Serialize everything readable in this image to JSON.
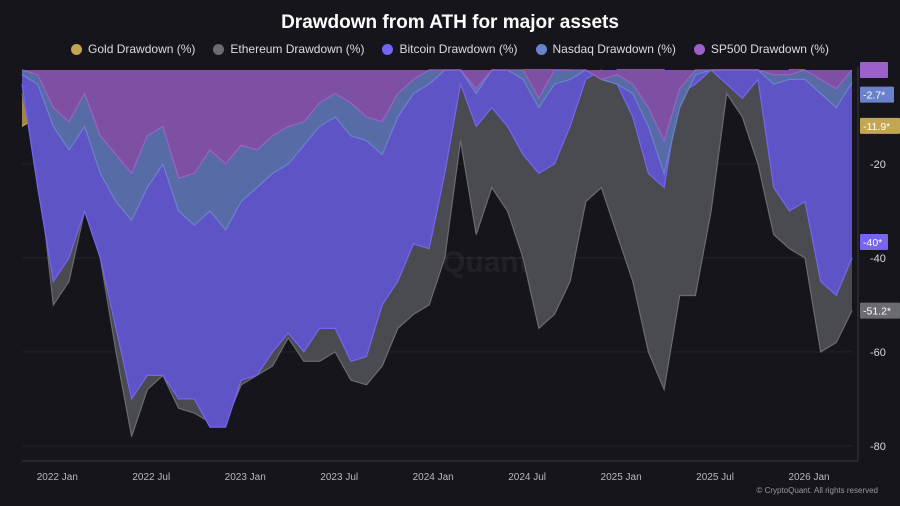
{
  "chart_data": {
    "type": "area",
    "title": "Drawdown from ATH for major assets",
    "ylim": [
      -83,
      0
    ],
    "y_ticks": [
      -20,
      -40,
      -60,
      -80
    ],
    "y_axis_side": "right",
    "x_tick_labels": [
      "2022 Jan",
      "2022 Jul",
      "2023 Jan",
      "2023 Jul",
      "2024 Jan",
      "2024 Jul",
      "2025 Jan",
      "2025 Jul",
      "2026 Jan"
    ],
    "x_tick_dates": [
      "2022-01",
      "2022-07",
      "2023-01",
      "2023-07",
      "2024-01",
      "2024-07",
      "2025-01",
      "2025-07",
      "2026-01"
    ],
    "legend_position": "top",
    "grid": false,
    "x": [
      "2021-11",
      "2021-12",
      "2022-01",
      "2022-02",
      "2022-03",
      "2022-04",
      "2022-05",
      "2022-06",
      "2022-07",
      "2022-08",
      "2022-09",
      "2022-10",
      "2022-11",
      "2022-12",
      "2023-01",
      "2023-02",
      "2023-03",
      "2023-04",
      "2023-05",
      "2023-06",
      "2023-07",
      "2023-08",
      "2023-09",
      "2023-10",
      "2023-11",
      "2023-12",
      "2024-01",
      "2024-02",
      "2024-03",
      "2024-04",
      "2024-05",
      "2024-06",
      "2024-07",
      "2024-08",
      "2024-09",
      "2024-10",
      "2024-11",
      "2024-12",
      "2025-01",
      "2025-02",
      "2025-03",
      "2025-04",
      "2025-05",
      "2025-06",
      "2025-07",
      "2025-08",
      "2025-09",
      "2025-10",
      "2025-11",
      "2025-12",
      "2026-01",
      "2026-02",
      "2026-03",
      "2026-04"
    ],
    "series": [
      {
        "name": "Gold Drawdown (%)",
        "color": "#c4a552",
        "last_label": "-11.9*",
        "values": [
          -12,
          -10,
          -8,
          -7,
          -2,
          -5,
          -10,
          -14,
          -15,
          -14,
          -20,
          -19,
          -15,
          -12,
          -6,
          -10,
          -3,
          -2,
          -4,
          -7,
          -6,
          -8,
          -9,
          -7,
          -3,
          -2,
          -3,
          -4,
          0,
          -2,
          -1,
          -2,
          0,
          0,
          0,
          0,
          -4,
          -3,
          0,
          0,
          0,
          0,
          -3,
          -2,
          0,
          0,
          0,
          0,
          -2,
          0,
          0,
          -8,
          -12,
          -11.9
        ]
      },
      {
        "name": "Ethereum Drawdown (%)",
        "color": "#6b6b72",
        "last_label": "-51.2*",
        "values": [
          -5,
          -20,
          -50,
          -45,
          -30,
          -40,
          -60,
          -78,
          -68,
          -65,
          -72,
          -73,
          -75,
          -75,
          -67,
          -65,
          -63,
          -57,
          -62,
          -62,
          -60,
          -66,
          -67,
          -63,
          -55,
          -52,
          -50,
          -40,
          -15,
          -35,
          -25,
          -30,
          -40,
          -55,
          -52,
          -45,
          -28,
          -25,
          -35,
          -45,
          -60,
          -68,
          -48,
          -48,
          -30,
          -5,
          -10,
          -20,
          -35,
          -38,
          -40,
          -60,
          -58,
          -51.2
        ]
      },
      {
        "name": "Bitcoin Drawdown (%)",
        "color": "#7466f0",
        "last_label": "-40*",
        "values": [
          -3,
          -25,
          -45,
          -40,
          -30,
          -40,
          -55,
          -70,
          -65,
          -65,
          -70,
          -70,
          -76,
          -76,
          -66,
          -65,
          -60,
          -56,
          -60,
          -55,
          -55,
          -62,
          -61,
          -50,
          -45,
          -37,
          -38,
          -22,
          -3,
          -12,
          -8,
          -12,
          -18,
          -22,
          -20,
          -12,
          -2,
          0,
          -3,
          -10,
          -22,
          -25,
          -5,
          -3,
          0,
          -3,
          -6,
          -2,
          -25,
          -30,
          -28,
          -45,
          -48,
          -40
        ]
      },
      {
        "name": "Nasdaq Drawdown (%)",
        "color": "#6a82cc",
        "last_label": "-2.7*",
        "values": [
          -1,
          -3,
          -12,
          -17,
          -12,
          -22,
          -28,
          -32,
          -25,
          -20,
          -30,
          -33,
          -30,
          -34,
          -28,
          -25,
          -22,
          -20,
          -16,
          -12,
          -10,
          -14,
          -15,
          -18,
          -10,
          -5,
          -3,
          0,
          0,
          -5,
          0,
          0,
          -2,
          -8,
          -3,
          -2,
          0,
          -2,
          -3,
          -5,
          -12,
          -22,
          -8,
          -1,
          0,
          0,
          0,
          0,
          -3,
          -2,
          -2,
          -5,
          -8,
          -2.7
        ]
      },
      {
        "name": "SP500 Drawdown (%)",
        "color": "#9a62c8",
        "last_label": "",
        "values": [
          0,
          -1,
          -8,
          -11,
          -5,
          -14,
          -18,
          -22,
          -14,
          -12,
          -23,
          -22,
          -17,
          -20,
          -16,
          -17,
          -14,
          -12,
          -11,
          -7,
          -5,
          -7,
          -10,
          -11,
          -5,
          -2,
          0,
          0,
          0,
          -4,
          0,
          0,
          0,
          -6,
          0,
          0,
          0,
          -2,
          -1,
          -3,
          -8,
          -15,
          -4,
          0,
          0,
          0,
          0,
          0,
          -1,
          -1,
          0,
          -2,
          -4,
          0
        ]
      }
    ]
  },
  "watermark": "CryptoQuant",
  "copyright": "© CryptoQuant. All rights reserved"
}
